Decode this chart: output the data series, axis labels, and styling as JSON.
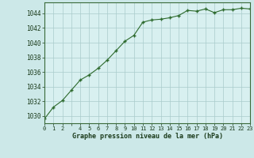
{
  "x": [
    0,
    1,
    2,
    3,
    4,
    5,
    6,
    7,
    8,
    9,
    10,
    11,
    12,
    13,
    14,
    15,
    16,
    17,
    18,
    19,
    20,
    21,
    22,
    23
  ],
  "y": [
    1029.6,
    1031.2,
    1032.1,
    1033.5,
    1034.9,
    1035.6,
    1036.5,
    1037.6,
    1038.9,
    1040.2,
    1041.0,
    1042.8,
    1043.1,
    1043.2,
    1043.4,
    1043.7,
    1044.4,
    1044.3,
    1044.6,
    1044.1,
    1044.5,
    1044.5,
    1044.7,
    1044.6
  ],
  "line_color": "#2d6a2d",
  "marker": "+",
  "marker_color": "#2d6a2d",
  "bg_color": "#cce8e8",
  "plot_bg_color": "#d8f0f0",
  "grid_color": "#aacccc",
  "xlabel": "Graphe pression niveau de la mer (hPa)",
  "xlabel_color": "#1a3a1a",
  "xtick_labels": [
    "0",
    "1",
    "2",
    "",
    "4",
    "5",
    "6",
    "7",
    "8",
    "9",
    "10",
    "11",
    "12",
    "13",
    "14",
    "15",
    "16",
    "17",
    "18",
    "19",
    "20",
    "21",
    "22",
    "23"
  ],
  "ylabel_ticks": [
    1030,
    1032,
    1034,
    1036,
    1038,
    1040,
    1042,
    1044
  ],
  "xlim": [
    0,
    23
  ],
  "ylim": [
    1029.0,
    1045.5
  ],
  "tick_color": "#1a3a1a",
  "font_family": "monospace"
}
